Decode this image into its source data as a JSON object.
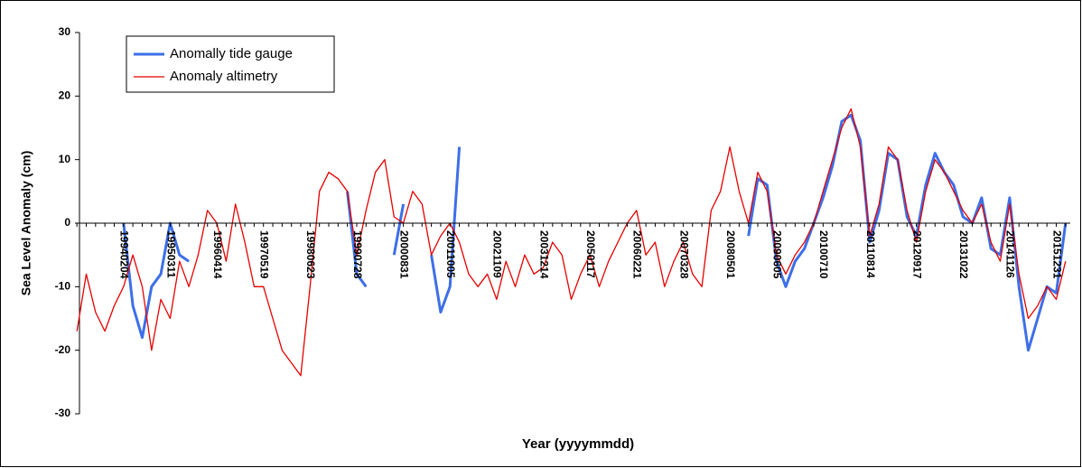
{
  "chart_data": {
    "type": "line",
    "x_label": "Year (yyyymmdd)",
    "y_label": "Sea Level Anomaly (cm)",
    "categories": [
      null,
      null,
      null,
      null,
      null,
      "19940204",
      null,
      null,
      null,
      null,
      "19950311",
      null,
      null,
      null,
      null,
      "19960414",
      null,
      null,
      null,
      null,
      "19970519",
      null,
      null,
      null,
      null,
      "19980623",
      null,
      null,
      null,
      null,
      "19990728",
      null,
      null,
      null,
      null,
      "20000831",
      null,
      null,
      null,
      null,
      "20011005",
      null,
      null,
      null,
      null,
      "20021109",
      null,
      null,
      null,
      null,
      "20031214",
      null,
      null,
      null,
      null,
      "20050117",
      null,
      null,
      null,
      null,
      "20060221",
      null,
      null,
      null,
      null,
      "20070328",
      null,
      null,
      null,
      null,
      "20080501",
      null,
      null,
      null,
      null,
      "20090605",
      null,
      null,
      null,
      null,
      "20100710",
      null,
      null,
      null,
      null,
      "20110814",
      null,
      null,
      null,
      null,
      "20120917",
      null,
      null,
      null,
      null,
      "20131022",
      null,
      null,
      null,
      null,
      "20141126",
      null,
      null,
      null,
      null,
      "20151231",
      null
    ],
    "series": [
      {
        "name": "Anomally tide gauge",
        "color": "#3d6fe8",
        "width": 3,
        "values": [
          null,
          null,
          null,
          null,
          null,
          0,
          -13,
          -18,
          -10,
          -8,
          0,
          -5,
          -6,
          null,
          null,
          null,
          null,
          null,
          null,
          null,
          null,
          null,
          null,
          null,
          null,
          null,
          null,
          null,
          null,
          5,
          -8,
          -10,
          null,
          null,
          -5,
          3,
          null,
          null,
          -5,
          -14,
          -10,
          12,
          null,
          null,
          null,
          null,
          null,
          null,
          null,
          null,
          null,
          null,
          null,
          null,
          null,
          null,
          null,
          null,
          null,
          null,
          null,
          null,
          null,
          null,
          null,
          null,
          null,
          null,
          null,
          null,
          null,
          null,
          -2,
          7,
          6,
          -6,
          -10,
          -6,
          -4,
          0,
          4,
          9,
          16,
          17,
          13,
          -3,
          2,
          11,
          10,
          1,
          -2,
          6,
          11,
          8,
          6,
          1,
          0,
          4,
          -4,
          -5,
          4,
          -10,
          -20,
          -15,
          -10,
          -11,
          0
        ]
      },
      {
        "name": "Anomaly altimetry",
        "color": "#e60000",
        "width": 1.3,
        "values": [
          -17,
          -8,
          -14,
          -17,
          -13,
          -10,
          -5,
          -10,
          -20,
          -12,
          -15,
          -6,
          -10,
          -5,
          2,
          0,
          -6,
          3,
          -3,
          -10,
          -10,
          -15,
          -20,
          -22,
          -24,
          -10,
          5,
          8,
          7,
          5,
          -5,
          2,
          8,
          10,
          1,
          0,
          5,
          3,
          -5,
          -2,
          0,
          -3,
          -8,
          -10,
          -8,
          -12,
          -6,
          -10,
          -5,
          -8,
          -7,
          -3,
          -5,
          -12,
          -8,
          -5,
          -10,
          -6,
          -3,
          0,
          2,
          -5,
          -3,
          -10,
          -6,
          -3,
          -8,
          -10,
          2,
          5,
          12,
          5,
          0,
          8,
          5,
          -5,
          -8,
          -5,
          -3,
          0,
          5,
          10,
          15,
          18,
          12,
          -2,
          3,
          12,
          10,
          2,
          -3,
          5,
          10,
          8,
          5,
          2,
          0,
          3,
          -3,
          -6,
          3,
          -8,
          -15,
          -13,
          -10,
          -12,
          -6
        ]
      }
    ],
    "ylim": [
      -30,
      30
    ],
    "yticks": [
      -30,
      -20,
      -10,
      0,
      10,
      20,
      30
    ],
    "legend": "upper-left"
  }
}
